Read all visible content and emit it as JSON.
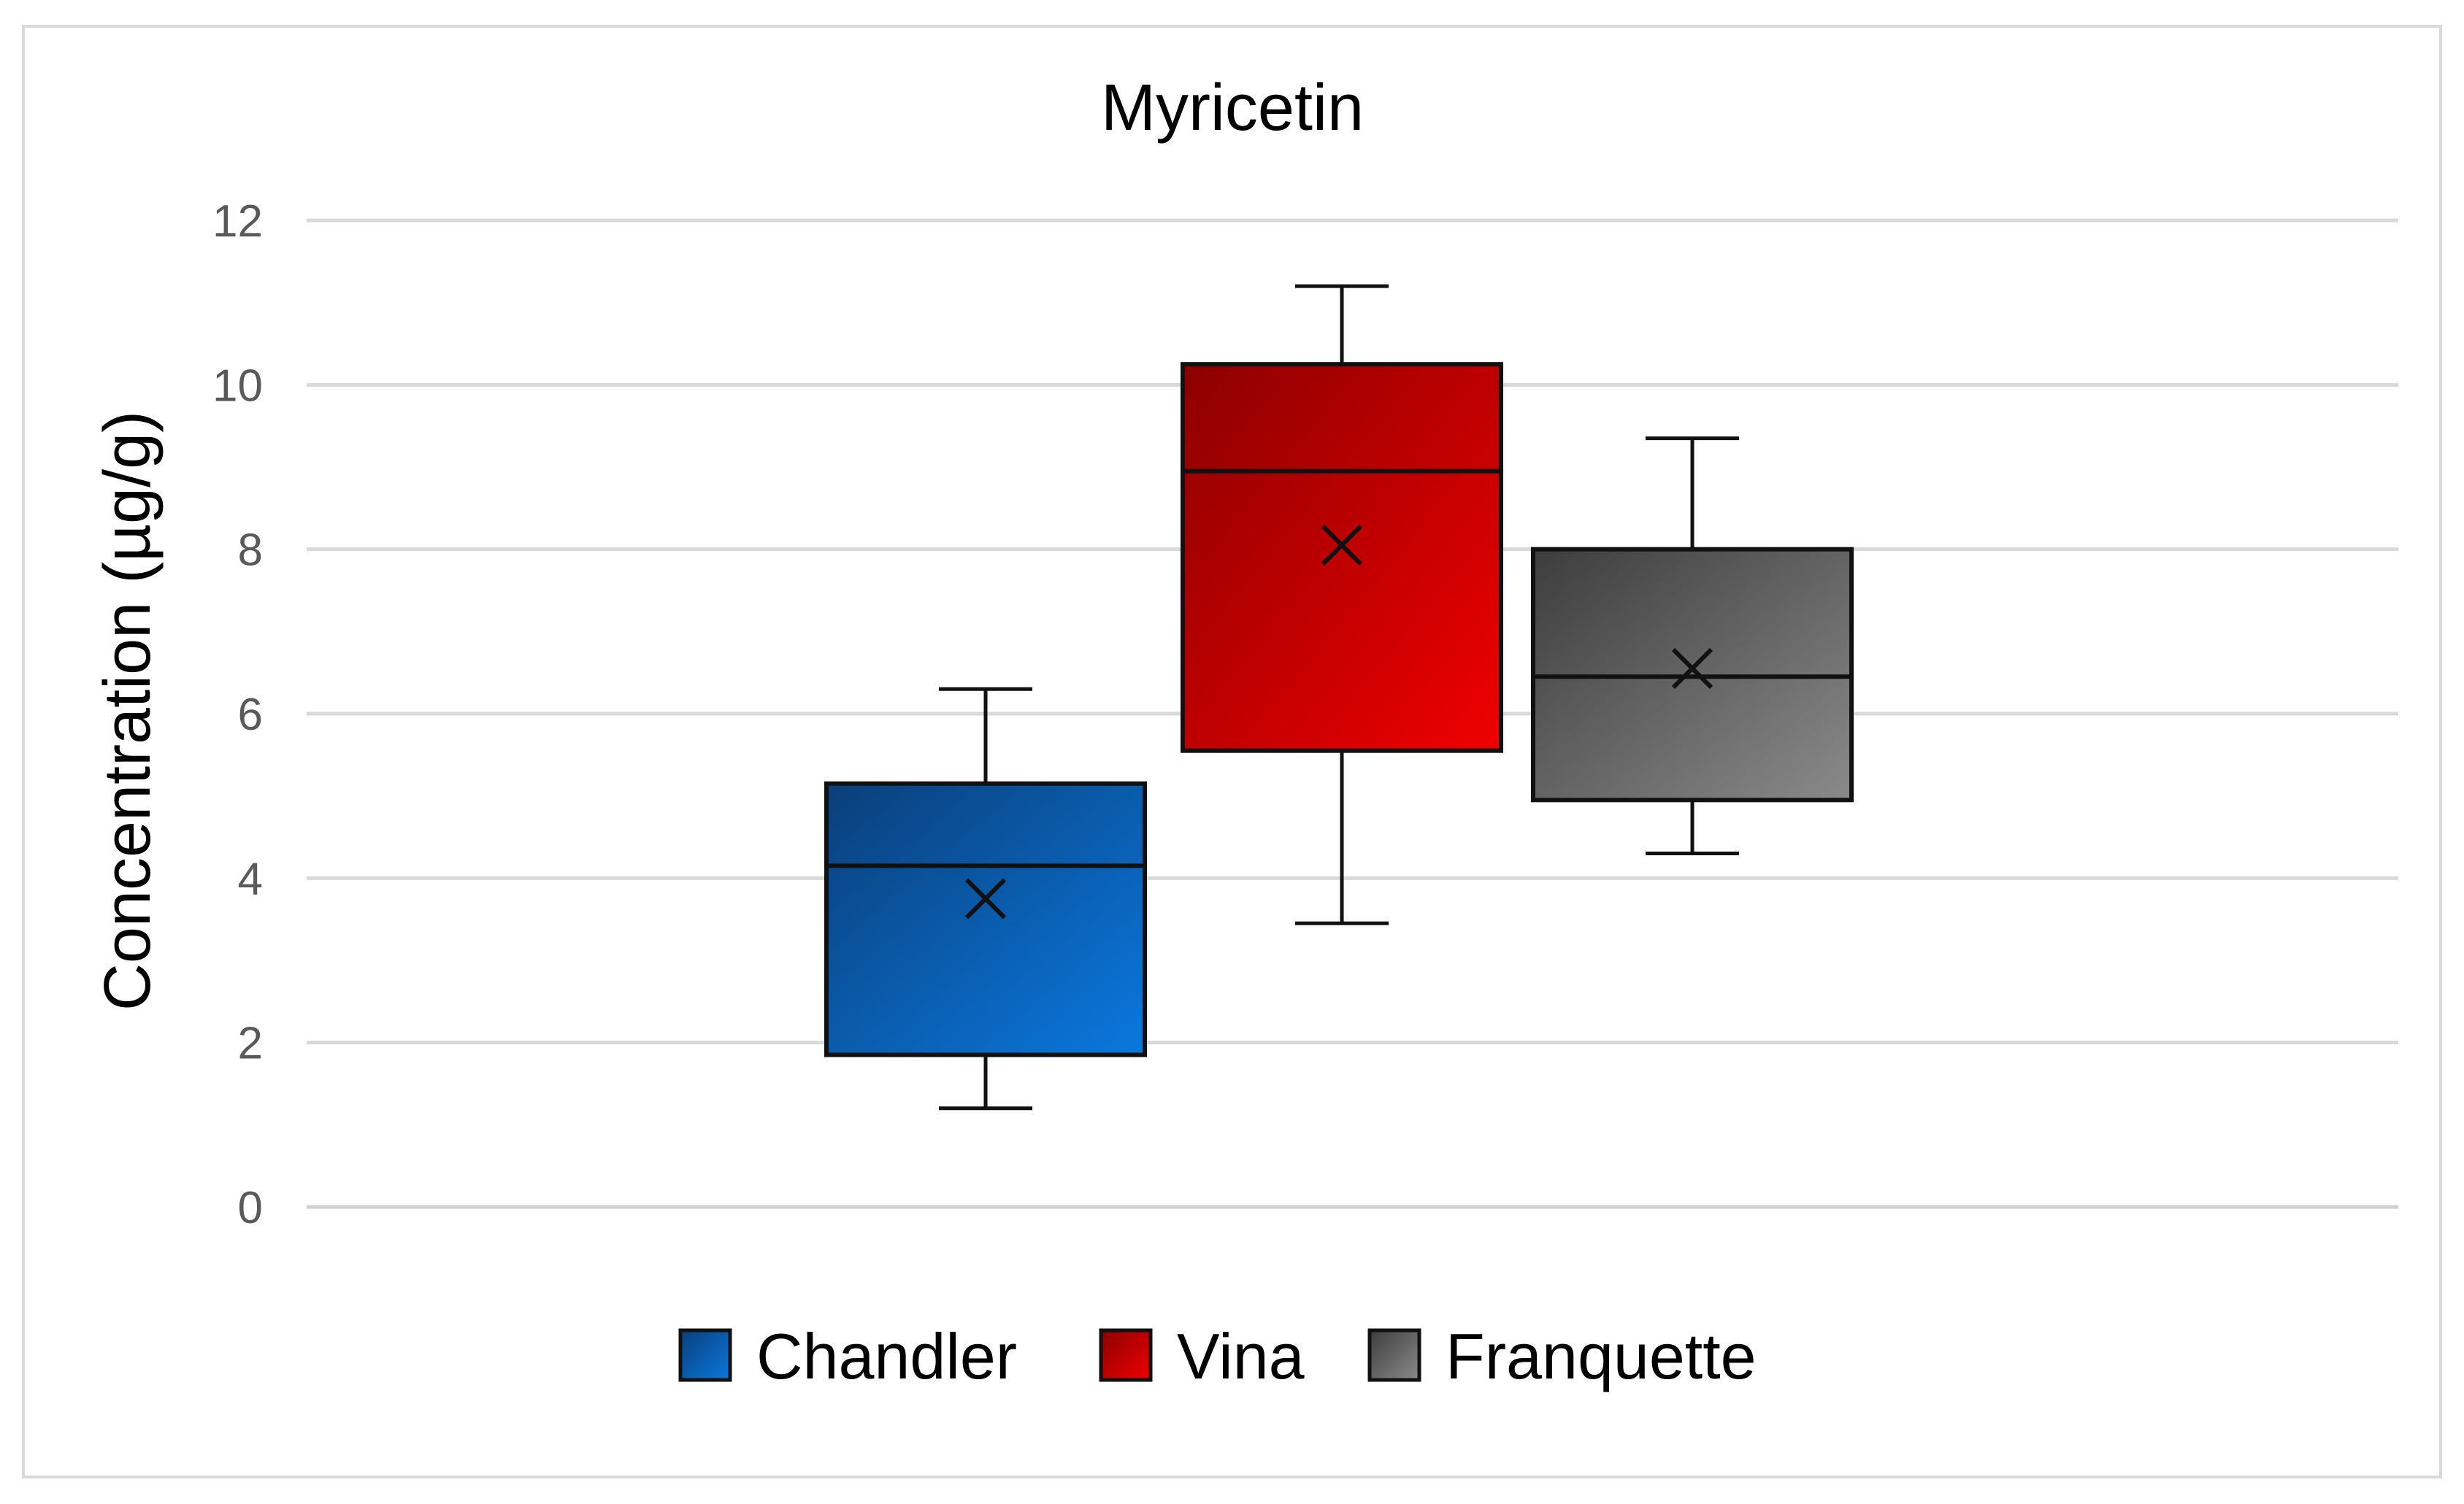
{
  "chart_data": {
    "type": "box",
    "title": "Myricetin",
    "ylabel": "Concentration (µg/g)",
    "xlabel": "",
    "ylim": [
      0,
      12
    ],
    "yticks": [
      0,
      2,
      4,
      6,
      8,
      10,
      12
    ],
    "grid": true,
    "legend_position": "bottom",
    "series": [
      {
        "name": "Chandler",
        "min": 1.2,
        "q1": 1.85,
        "median": 4.15,
        "q3": 5.15,
        "max": 6.3,
        "mean": 3.75,
        "color": "#0b5cad"
      },
      {
        "name": "Vina",
        "min": 3.45,
        "q1": 5.55,
        "median": 8.95,
        "q3": 10.25,
        "max": 11.2,
        "mean": 8.05,
        "color": "#c00000"
      },
      {
        "name": "Franquette",
        "min": 4.3,
        "q1": 4.95,
        "median": 6.45,
        "q3": 8.0,
        "max": 9.35,
        "mean": 6.55,
        "color": "#6b6b6b"
      }
    ]
  }
}
